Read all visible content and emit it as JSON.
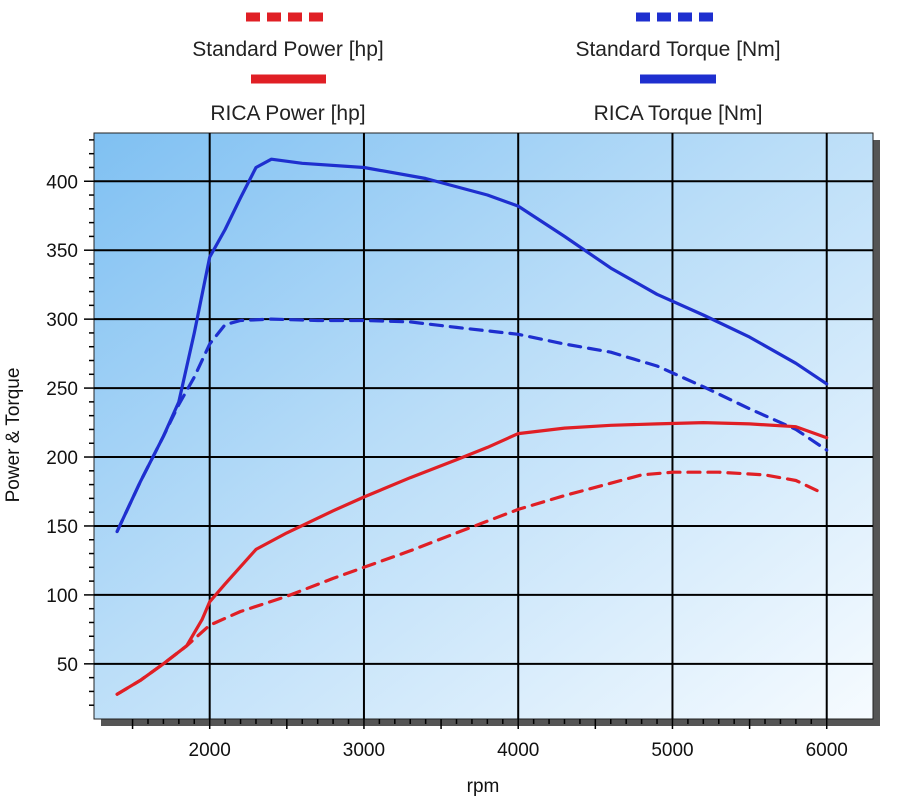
{
  "chart_data": {
    "type": "line",
    "title": "",
    "xlabel": "rpm",
    "ylabel": "Power & Torque",
    "xlim": [
      1250,
      6300
    ],
    "ylim": [
      10,
      435
    ],
    "xticks": [
      2000,
      3000,
      4000,
      5000,
      6000
    ],
    "yticks": [
      50,
      100,
      150,
      200,
      250,
      300,
      350,
      400
    ],
    "grid": true,
    "legend_position": "top",
    "series": [
      {
        "name": "Standard Power [hp]",
        "color": "#e01f25",
        "style": "dashed",
        "x": [
          1400,
          1550,
          1700,
          1850,
          2000,
          2200,
          2500,
          2800,
          3000,
          3300,
          3600,
          4000,
          4300,
          4600,
          4800,
          5000,
          5300,
          5600,
          5800,
          5950
        ],
        "y": [
          28,
          38,
          50,
          63,
          78,
          88,
          99,
          112,
          120,
          132,
          145,
          162,
          172,
          181,
          187,
          189,
          189,
          187,
          183,
          175
        ]
      },
      {
        "name": "Standard Torque [Nm]",
        "color": "#1e2fcf",
        "style": "dashed",
        "x": [
          1400,
          1550,
          1700,
          1800,
          1900,
          2000,
          2100,
          2200,
          2400,
          2700,
          3000,
          3300,
          3600,
          4000,
          4300,
          4600,
          4900,
          5200,
          5500,
          5800,
          6000
        ],
        "y": [
          146,
          182,
          215,
          238,
          258,
          282,
          296,
          299,
          300,
          299,
          299,
          298,
          294,
          289,
          282,
          276,
          266,
          251,
          235,
          220,
          205
        ]
      },
      {
        "name": "RICA Power [hp]",
        "color": "#e01f25",
        "style": "solid",
        "x": [
          1400,
          1550,
          1700,
          1850,
          1950,
          2000,
          2100,
          2300,
          2500,
          2800,
          3000,
          3300,
          3600,
          3800,
          4000,
          4300,
          4600,
          4900,
          5200,
          5500,
          5800,
          6000
        ],
        "y": [
          28,
          38,
          50,
          63,
          82,
          95,
          108,
          133,
          145,
          161,
          171,
          185,
          198,
          207,
          217,
          221,
          223,
          224,
          225,
          224,
          222,
          214
        ]
      },
      {
        "name": "RICA Torque [Nm]",
        "color": "#1e2fcf",
        "style": "solid",
        "x": [
          1400,
          1550,
          1700,
          1800,
          1900,
          2000,
          2100,
          2200,
          2300,
          2400,
          2600,
          3000,
          3400,
          3800,
          4000,
          4300,
          4600,
          4900,
          5200,
          5500,
          5800,
          6000
        ],
        "y": [
          146,
          182,
          215,
          240,
          290,
          345,
          365,
          388,
          410,
          416,
          413,
          410,
          402,
          390,
          382,
          360,
          337,
          318,
          303,
          287,
          268,
          253
        ]
      }
    ]
  },
  "legend": {
    "std_power": "Standard Power [hp]",
    "std_torque": "Standard Torque [Nm]",
    "rica_power": "RICA Power [hp]",
    "rica_torque": "RICA Torque [Nm]"
  },
  "axes": {
    "x_title": "rpm",
    "y_title": "Power & Torque",
    "x_tick_labels": [
      "2000",
      "3000",
      "4000",
      "5000",
      "6000"
    ],
    "y_tick_labels": [
      "50",
      "100",
      "150",
      "200",
      "250",
      "300",
      "350",
      "400"
    ]
  },
  "colors": {
    "power": "#e01f25",
    "torque": "#1e2fcf",
    "plot_bg_start": "#8ec8f4",
    "plot_bg_end": "#f4f9fe",
    "grid": "#000000"
  }
}
